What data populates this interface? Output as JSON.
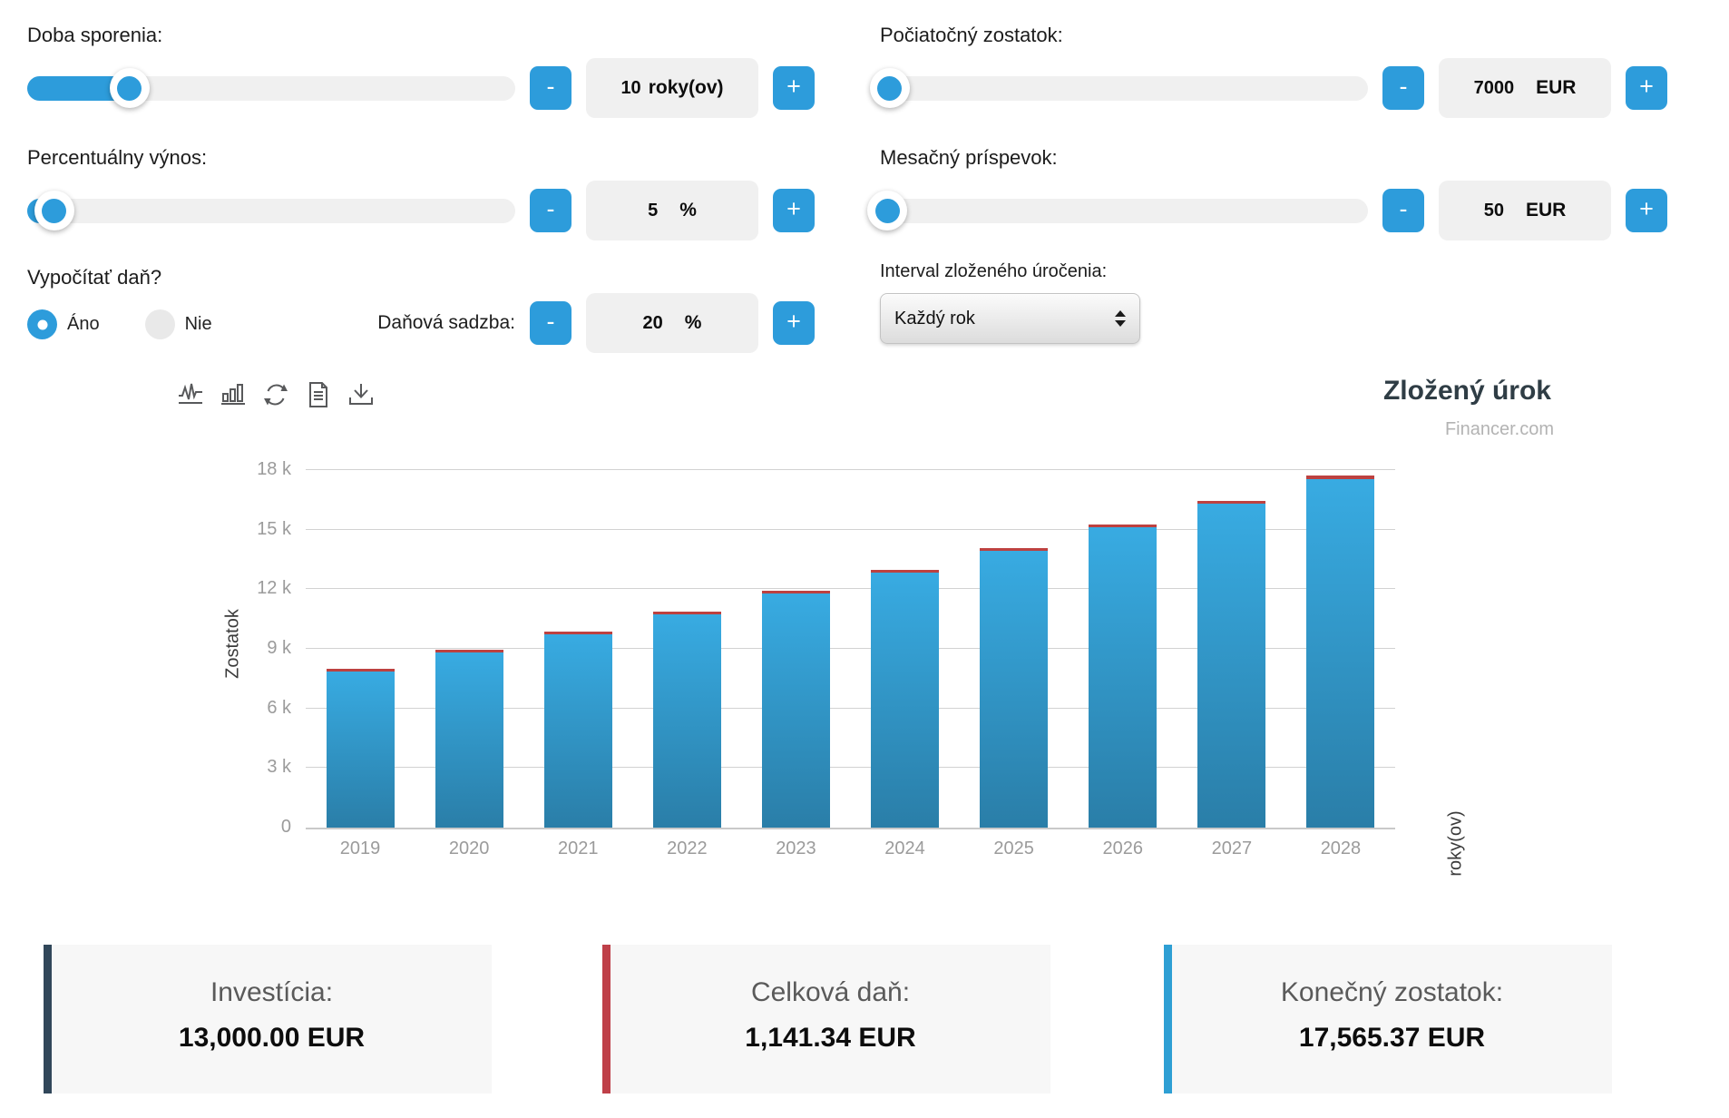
{
  "colors": {
    "accent": "#2d9cdb",
    "bar_gradient_top": "#38abe2",
    "bar_gradient_bottom": "#2a7ea8",
    "tax_red": "#bd4140",
    "card_dark": "#31475a",
    "card_red": "#bf4049",
    "card_blue": "#2e9fd4"
  },
  "controls": {
    "savings_period": {
      "label": "Doba sporenia:",
      "minus": "-",
      "plus": "+",
      "value": "10",
      "unit": "roky(ov)",
      "slider_percent": 21
    },
    "initial_balance": {
      "label": "Počiatočný zostatok:",
      "minus": "-",
      "plus": "+",
      "value": "7000",
      "unit": "EUR",
      "slider_percent": 2
    },
    "percent_yield": {
      "label": "Percentuálny výnos:",
      "minus": "-",
      "plus": "+",
      "value": "5",
      "unit": "%",
      "slider_percent": 5.5
    },
    "monthly_contribution": {
      "label": "Mesačný príspevok:",
      "minus": "-",
      "plus": "+",
      "value": "50",
      "unit": "EUR",
      "slider_percent": 1.5
    },
    "calculate_tax": {
      "label": "Vypočítať daň?",
      "options": [
        {
          "label": "Áno",
          "selected": true
        },
        {
          "label": "Nie",
          "selected": false
        }
      ]
    },
    "tax_rate": {
      "label": "Daňová sadzba:",
      "minus": "-",
      "plus": "+",
      "value": "20",
      "unit": "%"
    },
    "compound_interval": {
      "label": "Interval zloženého úročenia:",
      "selected_option": "Každý rok"
    }
  },
  "toolbar": {
    "icons": [
      "line-chart-icon",
      "bar-chart-icon",
      "refresh-icon",
      "document-icon",
      "download-icon"
    ]
  },
  "chart": {
    "title": "Zložený úrok",
    "subtitle": "Financer.com"
  },
  "chart_data": {
    "type": "bar",
    "stacked": true,
    "grid": true,
    "legend_position": "none",
    "title": "Zložený úrok",
    "xlabel": "roky(ov)",
    "ylabel": "Zostatok",
    "categories": [
      "2019",
      "2020",
      "2021",
      "2022",
      "2023",
      "2024",
      "2025",
      "2026",
      "2027",
      "2028"
    ],
    "series": [
      {
        "name": "Zostatok",
        "color": "#2d9cdb",
        "values": [
          7880.0,
          8795.2,
          9747.01,
          10736.89,
          11766.36,
          12837.02,
          13950.5,
          15108.52,
          16312.86,
          17565.38
        ]
      },
      {
        "name": "Daň",
        "color": "#bd4140",
        "values": [
          70.0,
          78.8,
          87.95,
          97.47,
          107.37,
          117.66,
          128.37,
          139.5,
          151.09,
          163.13
        ]
      }
    ],
    "ylim": [
      0,
      18000
    ],
    "ytick_labels": [
      "0",
      "3 k",
      "6 k",
      "9 k",
      "12 k",
      "15 k",
      "18 k"
    ]
  },
  "summary_cards": [
    {
      "label": "Investícia:",
      "value": "13,000.00 EUR",
      "accent": "#31475a"
    },
    {
      "label": "Celková daň:",
      "value": "1,141.34 EUR",
      "accent": "#bf4049"
    },
    {
      "label": "Konečný zostatok:",
      "value": "17,565.37 EUR",
      "accent": "#2e9fd4"
    }
  ]
}
